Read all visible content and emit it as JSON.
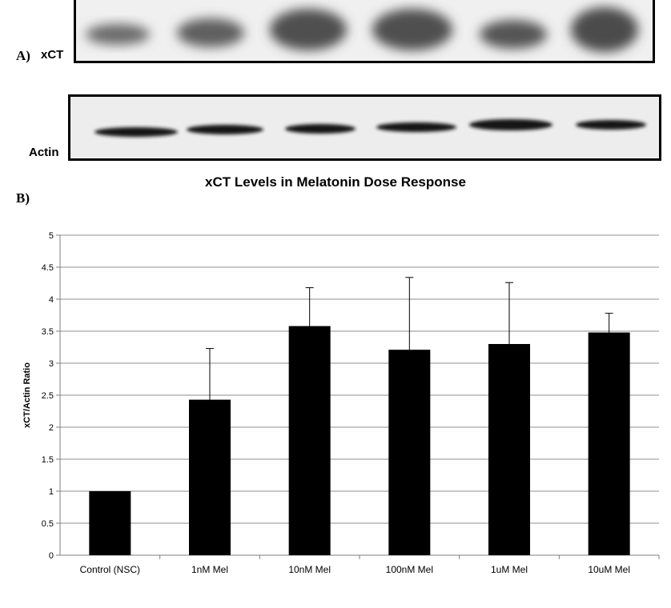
{
  "panel_a": {
    "label": "A)",
    "blots": [
      {
        "name": "xCT",
        "bands": 6
      },
      {
        "name": "Actin",
        "bands": 6
      }
    ]
  },
  "panel_b": {
    "label": "B)"
  },
  "colors": {
    "bar": "#000000",
    "grid": "#8c8c8c",
    "axis": "#7f7f7f",
    "blot_background": "#f2f2f2",
    "band": "#1a1a1a"
  },
  "chart_data": {
    "type": "bar",
    "title": "xCT Levels in Melatonin Dose Response",
    "xlabel": "",
    "ylabel": "xCT/Actin Ratio",
    "categories": [
      "Control (NSC)",
      "1nM Mel",
      "10nM Mel",
      "100nM Mel",
      "1uM Mel",
      "10uM Mel"
    ],
    "values": [
      1.0,
      2.43,
      3.58,
      3.21,
      3.3,
      3.48
    ],
    "error_upper": [
      0,
      0.8,
      0.6,
      1.13,
      0.96,
      0.3
    ],
    "ylim": [
      0,
      5
    ],
    "yticks": [
      0,
      0.5,
      1,
      1.5,
      2,
      2.5,
      3,
      3.5,
      4,
      4.5,
      5
    ],
    "ytick_labels": [
      "0",
      "0.5",
      "1",
      "1.5",
      "2",
      "2.5",
      "3",
      "3.5",
      "4",
      "4.5",
      "5"
    ],
    "grid": true,
    "legend": "none"
  }
}
